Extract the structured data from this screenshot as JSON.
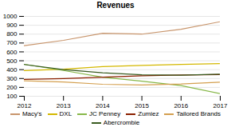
{
  "chart_data": {
    "type": "line",
    "title": "Revenues",
    "x": [
      2012,
      2013,
      2014,
      2015,
      2016,
      2017
    ],
    "series": [
      {
        "name": "Macy's",
        "color": "#c8956c",
        "values": [
          670,
          730,
          810,
          800,
          855,
          940
        ]
      },
      {
        "name": "DXL",
        "color": "#d4b800",
        "values": [
          390,
          405,
          435,
          448,
          458,
          468
        ]
      },
      {
        "name": "JC Penney",
        "color": "#88b84a",
        "values": [
          460,
          390,
          315,
          270,
          220,
          130
        ]
      },
      {
        "name": "Zumiez",
        "color": "#8b2000",
        "values": [
          290,
          300,
          315,
          330,
          340,
          345
        ]
      },
      {
        "name": "Tailored Brands",
        "color": "#d4a050",
        "values": [
          275,
          260,
          235,
          228,
          238,
          258
        ]
      },
      {
        "name": "Abercrombie",
        "color": "#3a5c20",
        "values": [
          458,
          400,
          365,
          342,
          338,
          348
        ]
      }
    ],
    "xlim": [
      2012,
      2017
    ],
    "xticks": [
      2012,
      2013,
      2014,
      2015,
      2016,
      2017
    ],
    "ylim": [
      100,
      1000
    ],
    "yticks": [
      100,
      200,
      300,
      400,
      500,
      600,
      700,
      800,
      900,
      1000
    ],
    "grid": true,
    "legend": "bottom"
  }
}
